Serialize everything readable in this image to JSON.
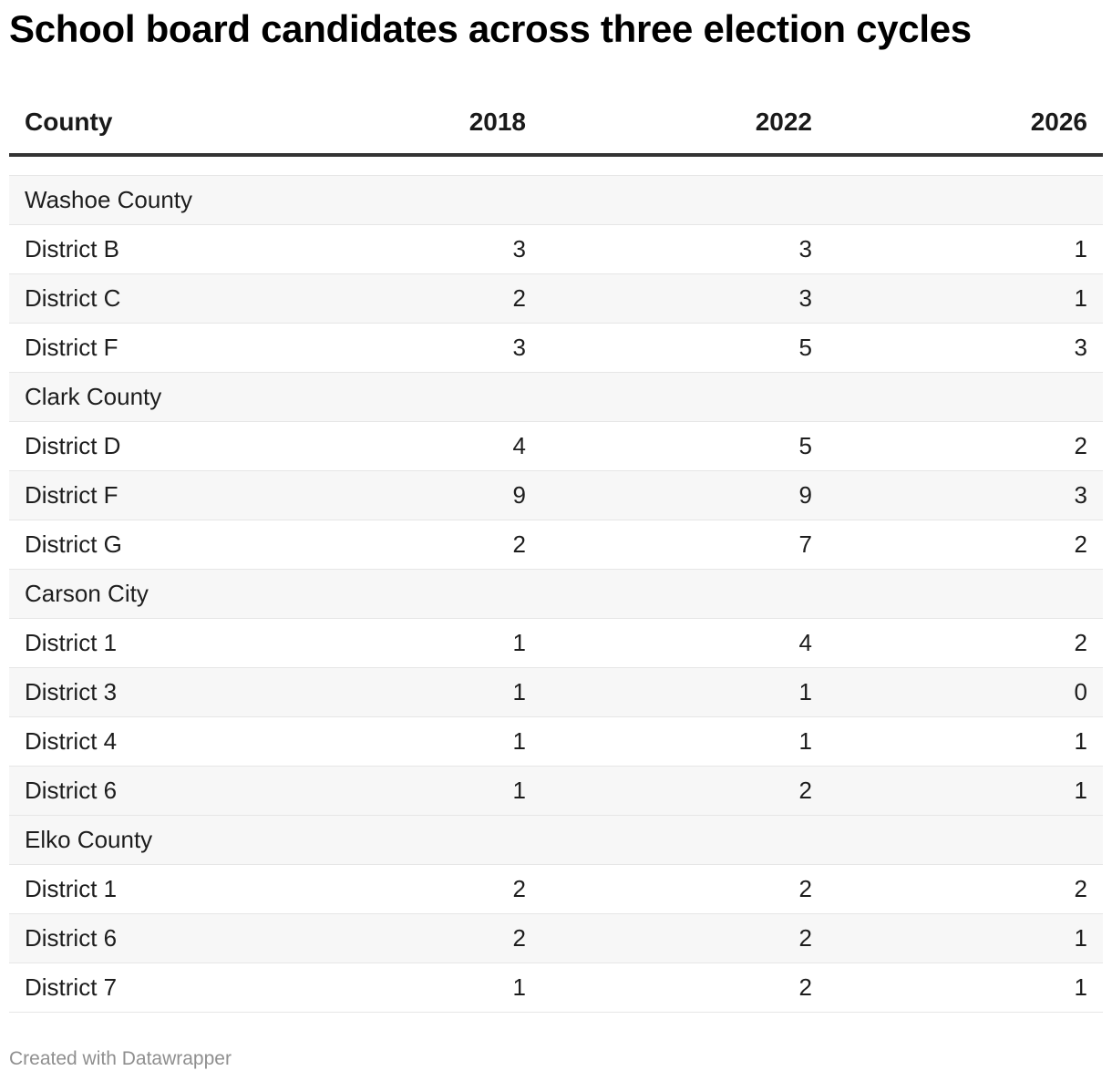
{
  "title": "School board candidates across three election cycles",
  "columns": [
    "County",
    "2018",
    "2022",
    "2026"
  ],
  "footer": "Created with Datawrapper",
  "rows": [
    {
      "type": "group",
      "label": "Washoe County"
    },
    {
      "type": "data",
      "label": "District B",
      "v2018": "3",
      "v2022": "3",
      "v2026": "1"
    },
    {
      "type": "data",
      "label": "District C",
      "v2018": "2",
      "v2022": "3",
      "v2026": "1"
    },
    {
      "type": "data",
      "label": "District F",
      "v2018": "3",
      "v2022": "5",
      "v2026": "3"
    },
    {
      "type": "group",
      "label": "Clark County"
    },
    {
      "type": "data",
      "label": "District D",
      "v2018": "4",
      "v2022": "5",
      "v2026": "2"
    },
    {
      "type": "data",
      "label": "District F",
      "v2018": "9",
      "v2022": "9",
      "v2026": "3"
    },
    {
      "type": "data",
      "label": "District G",
      "v2018": "2",
      "v2022": "7",
      "v2026": "2"
    },
    {
      "type": "group",
      "label": "Carson City"
    },
    {
      "type": "data",
      "label": "District 1",
      "v2018": "1",
      "v2022": "4",
      "v2026": "2"
    },
    {
      "type": "data",
      "label": "District 3",
      "v2018": "1",
      "v2022": "1",
      "v2026": "0"
    },
    {
      "type": "data",
      "label": "District 4",
      "v2018": "1",
      "v2022": "1",
      "v2026": "1"
    },
    {
      "type": "data",
      "label": "District 6",
      "v2018": "1",
      "v2022": "2",
      "v2026": "1"
    },
    {
      "type": "group",
      "label": "Elko County"
    },
    {
      "type": "data",
      "label": "District 1",
      "v2018": "2",
      "v2022": "2",
      "v2026": "2"
    },
    {
      "type": "data",
      "label": "District 6",
      "v2018": "2",
      "v2022": "2",
      "v2026": "1"
    },
    {
      "type": "data",
      "label": "District 7",
      "v2018": "1",
      "v2022": "2",
      "v2026": "1"
    }
  ],
  "chart_data": {
    "type": "table",
    "title": "School board candidates across three election cycles",
    "columns": [
      "County",
      "2018",
      "2022",
      "2026"
    ],
    "groups": [
      {
        "name": "Washoe County",
        "rows": [
          {
            "district": "District B",
            "values": [
              3,
              3,
              1
            ]
          },
          {
            "district": "District C",
            "values": [
              2,
              3,
              1
            ]
          },
          {
            "district": "District F",
            "values": [
              3,
              5,
              3
            ]
          }
        ]
      },
      {
        "name": "Clark County",
        "rows": [
          {
            "district": "District D",
            "values": [
              4,
              5,
              2
            ]
          },
          {
            "district": "District F",
            "values": [
              9,
              9,
              3
            ]
          },
          {
            "district": "District G",
            "values": [
              2,
              7,
              2
            ]
          }
        ]
      },
      {
        "name": "Carson City",
        "rows": [
          {
            "district": "District 1",
            "values": [
              1,
              4,
              2
            ]
          },
          {
            "district": "District 3",
            "values": [
              1,
              1,
              0
            ]
          },
          {
            "district": "District 4",
            "values": [
              1,
              1,
              1
            ]
          },
          {
            "district": "District 6",
            "values": [
              1,
              2,
              1
            ]
          }
        ]
      },
      {
        "name": "Elko County",
        "rows": [
          {
            "district": "District 1",
            "values": [
              2,
              2,
              2
            ]
          },
          {
            "district": "District 6",
            "values": [
              2,
              2,
              1
            ]
          },
          {
            "district": "District 7",
            "values": [
              1,
              2,
              1
            ]
          }
        ]
      }
    ]
  }
}
